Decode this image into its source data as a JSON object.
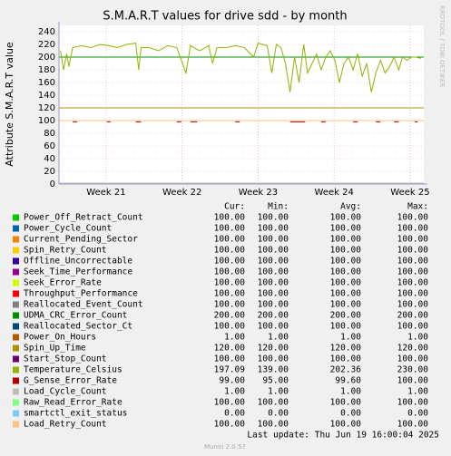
{
  "chart_data": {
    "type": "line",
    "title": "S.M.A.R.T values for drive sdd - by month",
    "y_label": "Attribute S.M.A.R.T value",
    "watermark": "RRDTOOL / TOBI OETIKER",
    "xlim": [
      20.38,
      25.18
    ],
    "xticks": [
      {
        "value": 21,
        "label": "Week 21"
      },
      {
        "value": 22,
        "label": "Week 22"
      },
      {
        "value": 23,
        "label": "Week 23"
      },
      {
        "value": 24,
        "label": "Week 24"
      },
      {
        "value": 25,
        "label": "Week 25"
      }
    ],
    "ylim": [
      0,
      250
    ],
    "yticks": [
      0,
      20,
      40,
      60,
      80,
      100,
      120,
      140,
      160,
      180,
      200,
      220,
      240
    ],
    "grid": true,
    "legend_headers": [
      "Cur:",
      "Min:",
      "Avg:",
      "Max:"
    ],
    "series": [
      {
        "name": "Power_Off_Retract_Count",
        "color": "#00CC00",
        "x": [
          20.38,
          25.18
        ],
        "values": [
          100,
          100
        ],
        "stats": [
          "100.00",
          "100.00",
          "100.00",
          "100.00"
        ]
      },
      {
        "name": "Power_Cycle_Count",
        "color": "#0066B3",
        "x": [
          20.38,
          25.18
        ],
        "values": [
          100,
          100
        ],
        "stats": [
          "100.00",
          "100.00",
          "100.00",
          "100.00"
        ]
      },
      {
        "name": "Current_Pending_Sector",
        "color": "#FF8000",
        "x": [
          20.38,
          25.18
        ],
        "values": [
          100,
          100
        ],
        "stats": [
          "100.00",
          "100.00",
          "100.00",
          "100.00"
        ]
      },
      {
        "name": "Spin_Retry_Count",
        "color": "#FFCC00",
        "x": [
          20.38,
          25.18
        ],
        "values": [
          100,
          100
        ],
        "stats": [
          "100.00",
          "100.00",
          "100.00",
          "100.00"
        ]
      },
      {
        "name": "Offline_Uncorrectable",
        "color": "#330099",
        "x": [
          20.38,
          25.18
        ],
        "values": [
          100,
          100
        ],
        "stats": [
          "100.00",
          "100.00",
          "100.00",
          "100.00"
        ]
      },
      {
        "name": "Seek_Time_Performance",
        "color": "#990099",
        "x": [
          20.38,
          25.18
        ],
        "values": [
          100,
          100
        ],
        "stats": [
          "100.00",
          "100.00",
          "100.00",
          "100.00"
        ]
      },
      {
        "name": "Seek_Error_Rate",
        "color": "#CCFF00",
        "x": [
          20.38,
          25.18
        ],
        "values": [
          100,
          100
        ],
        "stats": [
          "100.00",
          "100.00",
          "100.00",
          "100.00"
        ]
      },
      {
        "name": "Throughput_Performance",
        "color": "#FF0000",
        "x": [
          20.38,
          25.18
        ],
        "values": [
          100,
          100
        ],
        "stats": [
          "100.00",
          "100.00",
          "100.00",
          "100.00"
        ]
      },
      {
        "name": "Reallocated_Event_Count",
        "color": "#808080",
        "x": [
          20.38,
          25.18
        ],
        "values": [
          100,
          100
        ],
        "stats": [
          "100.00",
          "100.00",
          "100.00",
          "100.00"
        ]
      },
      {
        "name": "UDMA_CRC_Error_Count",
        "color": "#008F00",
        "x": [
          20.38,
          25.18
        ],
        "values": [
          200,
          200
        ],
        "stats": [
          "200.00",
          "200.00",
          "200.00",
          "200.00"
        ]
      },
      {
        "name": "Reallocated_Sector_Ct",
        "color": "#00487D",
        "x": [
          20.38,
          25.18
        ],
        "values": [
          100,
          100
        ],
        "stats": [
          "100.00",
          "100.00",
          "100.00",
          "100.00"
        ]
      },
      {
        "name": "Power_On_Hours",
        "color": "#B35A00",
        "x": [
          20.38,
          25.18
        ],
        "values": [
          1,
          1
        ],
        "stats": [
          "1.00",
          "1.00",
          "1.00",
          "1.00"
        ]
      },
      {
        "name": "Spin_Up_Time",
        "color": "#B38F00",
        "x": [
          20.38,
          25.18
        ],
        "values": [
          120,
          120
        ],
        "stats": [
          "120.00",
          "120.00",
          "120.00",
          "120.00"
        ]
      },
      {
        "name": "Start_Stop_Count",
        "color": "#6B006B",
        "x": [
          20.38,
          25.18
        ],
        "values": [
          100,
          100
        ],
        "stats": [
          "100.00",
          "100.00",
          "100.00",
          "100.00"
        ]
      },
      {
        "name": "Temperature_Celsius",
        "color": "#8FB300",
        "x": [
          20.4,
          20.44,
          20.48,
          20.51,
          20.56,
          20.68,
          20.8,
          20.92,
          21.04,
          21.15,
          21.27,
          21.39,
          21.43,
          21.46,
          21.57,
          21.69,
          21.81,
          21.93,
          22.05,
          22.11,
          22.23,
          22.35,
          22.4,
          22.46,
          22.58,
          22.7,
          22.82,
          22.94,
          23.0,
          23.06,
          23.12,
          23.18,
          23.24,
          23.3,
          23.36,
          23.42,
          23.48,
          23.54,
          23.6,
          23.65,
          23.71,
          23.77,
          23.83,
          23.89,
          23.95,
          24.01,
          24.07,
          24.13,
          24.19,
          24.25,
          24.31,
          24.37,
          24.43,
          24.49,
          24.55,
          24.61,
          24.67,
          24.73,
          24.79,
          24.85,
          24.9,
          24.96,
          25.02,
          25.08,
          25.14
        ],
        "values": [
          210,
          180,
          205,
          185,
          215,
          218,
          215,
          220,
          218,
          215,
          220,
          222,
          180,
          215,
          215,
          210,
          218,
          215,
          175,
          218,
          210,
          218,
          190,
          215,
          215,
          218,
          215,
          200,
          222,
          220,
          218,
          175,
          220,
          215,
          190,
          145,
          200,
          160,
          220,
          175,
          190,
          205,
          180,
          200,
          210,
          195,
          160,
          190,
          200,
          180,
          205,
          170,
          190,
          145,
          175,
          195,
          175,
          185,
          200,
          180,
          200,
          195,
          200,
          200,
          198
        ],
        "stats": [
          "197.09",
          "139.00",
          "202.36",
          "230.00"
        ]
      },
      {
        "name": "G_Sense_Error_Rate",
        "color": "#B30000",
        "x": [
          20.56,
          20.62,
          20.64,
          21.01,
          21.06,
          21.08,
          21.39,
          21.46,
          21.48,
          21.93,
          21.99,
          22.01,
          22.11,
          22.2,
          22.22,
          22.7,
          22.76,
          22.78,
          23.42,
          23.62,
          23.64,
          23.83,
          23.89,
          23.91,
          24.25,
          24.31,
          24.33,
          24.55,
          24.61,
          24.63,
          24.79,
          24.85,
          24.87,
          25.06,
          25.1
        ],
        "values": [
          98,
          98,
          null,
          98,
          98,
          null,
          98,
          98,
          null,
          98,
          98,
          null,
          98,
          98,
          null,
          98,
          98,
          null,
          98,
          98,
          null,
          98,
          98,
          null,
          98,
          98,
          null,
          98,
          98,
          null,
          98,
          98,
          null,
          98,
          98
        ],
        "stats": [
          "99.00",
          "95.00",
          "99.60",
          "100.00"
        ]
      },
      {
        "name": "Load_Cycle_Count",
        "color": "#BEBEBE",
        "x": [
          20.38,
          25.18
        ],
        "values": [
          1,
          1
        ],
        "stats": [
          "1.00",
          "1.00",
          "1.00",
          "1.00"
        ]
      },
      {
        "name": "Raw_Read_Error_Rate",
        "color": "#80FF80",
        "x": [
          20.38,
          25.18
        ],
        "values": [
          100,
          100
        ],
        "stats": [
          "100.00",
          "100.00",
          "100.00",
          "100.00"
        ]
      },
      {
        "name": "smartctl_exit_status",
        "color": "#80C9FF",
        "x": [
          20.38,
          25.18
        ],
        "values": [
          0,
          0
        ],
        "stats": [
          "0.00",
          "0.00",
          "0.00",
          "0.00"
        ]
      },
      {
        "name": "Load_Retry_Count",
        "color": "#FFC080",
        "x": [
          20.38,
          25.18
        ],
        "values": [
          100,
          100
        ],
        "stats": [
          "100.00",
          "100.00",
          "100.00",
          "100.00"
        ]
      }
    ],
    "last_update": "Last update: Thu Jun 19 16:00:04 2025",
    "version": "Munin 2.0.57"
  }
}
